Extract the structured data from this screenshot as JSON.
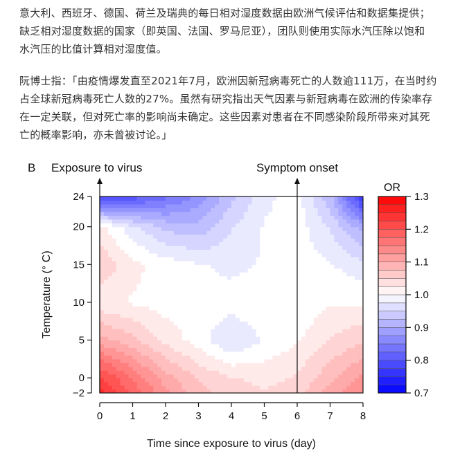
{
  "article": {
    "para1_lines": [
      "意大利、西班牙、德国、荷兰及瑞典的每日相对湿度数据由欧洲气候评估和数据集提供；",
      "缺乏相对湿度数据的国家（即英国、法国、罗马尼亚），团队则使用实际水汽压除以饱和",
      "水汽压的比值计算相对湿度值。"
    ],
    "para2_lines": [
      "阮博士指：「由疫情爆发直至2021年7月，欧洲因新冠病毒死亡的人数逾111万，在当时约",
      "占全球新冠病毒死亡人数的27%。虽然有研究指出天气因素与新冠病毒在欧洲的传染率存",
      "在一定关联，但对死亡率的影响尚未确定。这些因素对患者在不同感染阶段所带来对其死",
      "亡的概率影响，亦未曾被讨论。」"
    ]
  },
  "chart_data": {
    "type": "heatmap",
    "panel_label": "B",
    "xlabel": "Time since exposure to virus (day)",
    "ylabel": "Temperature (° C)",
    "xlim": [
      0,
      8
    ],
    "ylim": [
      -2,
      24
    ],
    "x_ticks": [
      0,
      1,
      2,
      3,
      4,
      5,
      6,
      7,
      8
    ],
    "y_ticks": [
      -2,
      0,
      5,
      10,
      15,
      20,
      24
    ],
    "annotations": [
      {
        "text": "Exposure to virus",
        "x": 0
      },
      {
        "text": "Symptom onset",
        "x": 6
      }
    ],
    "colorbar": {
      "title": "OR",
      "min": 0.7,
      "max": 1.3,
      "ticks": [
        0.7,
        0.8,
        0.9,
        1.0,
        1.1,
        1.2,
        1.3
      ],
      "low_color": "#0000ff",
      "mid_color": "#ffffff",
      "high_color": "#ff0000"
    },
    "grid_x": [
      0,
      1,
      2,
      3,
      4,
      5,
      6,
      7,
      8
    ],
    "grid_y": [
      -2,
      0,
      5,
      10,
      15,
      20,
      24
    ],
    "z": [
      [
        1.25,
        1.18,
        1.12,
        1.07,
        1.05,
        1.04,
        1.05,
        1.1,
        1.14
      ],
      [
        1.22,
        1.16,
        1.1,
        1.06,
        1.04,
        1.03,
        1.04,
        1.08,
        1.12
      ],
      [
        1.1,
        1.07,
        1.03,
        1.0,
        0.96,
        0.99,
        1.01,
        1.04,
        1.06
      ],
      [
        1.02,
        1.01,
        1.0,
        1.0,
        1.0,
        1.01,
        0.99,
        1.01,
        1.01
      ],
      [
        1.06,
        1.02,
        1.0,
        0.99,
        0.98,
        0.99,
        1.0,
        0.99,
        0.97
      ],
      [
        1.02,
        0.97,
        0.93,
        0.92,
        0.96,
        0.99,
        1.0,
        0.96,
        0.9
      ],
      [
        0.78,
        0.8,
        0.83,
        0.87,
        0.93,
        0.98,
        1.0,
        0.92,
        0.76
      ]
    ]
  }
}
